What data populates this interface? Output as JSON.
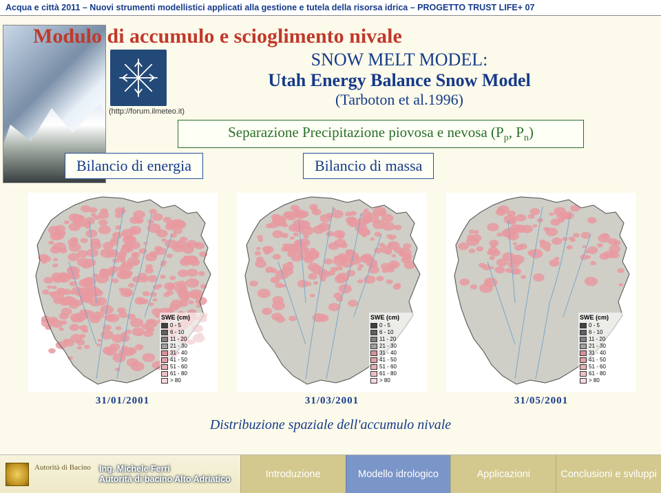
{
  "header": {
    "text": "Acqua e città 2011 – Nuovi strumenti modellistici applicati alla gestione e tutela della risorsa idrica – PROGETTO TRUST LIFE+ 07",
    "color": "#163a8a",
    "fontsize": 12.5
  },
  "main_title": {
    "text": "Modulo di accumulo e scioglimento nivale",
    "color": "#c0392b",
    "fontsize": 30
  },
  "snowflake_caption": "(http://forum.ilmeteo.it)",
  "subtitle": {
    "line1": "SNOW MELT MODEL:",
    "line2": "Utah Energy Balance Snow Model",
    "line3": "(Tarboton et al.1996)",
    "color": "#163a8a"
  },
  "separation_box": {
    "text_prefix": "Separazione Precipitazione piovosa e nevosa (P",
    "sub1": "p",
    "mid": ", P",
    "sub2": "n",
    "suffix": ")",
    "color": "#2a6f2a",
    "border_color": "#2a6f2a"
  },
  "energy_box": {
    "text": "Bilancio di energia",
    "color": "#163a8a"
  },
  "mass_box": {
    "text": "Bilancio di massa",
    "color": "#163a8a"
  },
  "maps": {
    "dates": [
      "31/01/2001",
      "31/03/2001",
      "31/05/2001"
    ],
    "fill_levels": [
      0.85,
      0.55,
      0.35
    ],
    "snow_color": "#e79aa0",
    "terrain_color": "#cfcfc7",
    "river_color": "#7aa6c8",
    "outline_color": "#555555",
    "legend_title": "SWE (cm)",
    "legend": [
      {
        "label": "0 - 5",
        "color": "#404040"
      },
      {
        "label": "6 - 10",
        "color": "#606060"
      },
      {
        "label": "11 - 20",
        "color": "#808080"
      },
      {
        "label": "21 - 30",
        "color": "#a0a0a0"
      },
      {
        "label": "31 - 40",
        "color": "#d89098"
      },
      {
        "label": "41 - 50",
        "color": "#e0a0a8"
      },
      {
        "label": "51 - 60",
        "color": "#e8b0b6"
      },
      {
        "label": "61 - 80",
        "color": "#f0c0c6"
      },
      {
        "label": "> 80",
        "color": "#f8d8dc"
      }
    ]
  },
  "distribution_caption": "Distribuzione spaziale dell'accumulo nivale",
  "footer": {
    "author_line1": "Ing. Michele Ferri",
    "author_line2": "Autorità di bacino Alto Adriatico",
    "tabs": [
      {
        "label": "Introduzione",
        "color": "#d3c98e"
      },
      {
        "label": "Modello idrologico",
        "color": "#7a95c8"
      },
      {
        "label": "Applicazioni",
        "color": "#d3c98e"
      },
      {
        "label": "Conclusioni e sviluppi",
        "color": "#d3c98e"
      }
    ]
  },
  "page_background": "#fcfaea"
}
